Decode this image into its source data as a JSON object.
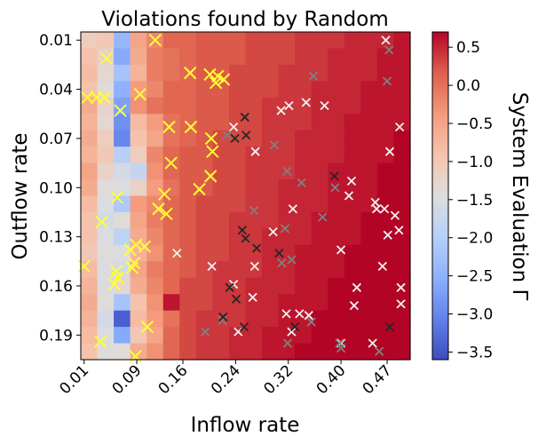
{
  "chart_data": {
    "type": "heatmap",
    "title": "Violations found by Random",
    "xlabel": "Inflow rate",
    "ylabel": "Outflow rate",
    "colorbar_label": "System Evaluation Γ",
    "x_ticklabels": [
      "0.01",
      "0.09",
      "0.16",
      "0.24",
      "0.32",
      "0.40",
      "0.47"
    ],
    "y_ticklabels": [
      "0.01",
      "0.04",
      "0.07",
      "0.10",
      "0.13",
      "0.16",
      "0.19"
    ],
    "colorbar_ticklabels": [
      "0.5",
      "0.0",
      "−0.5",
      "−1.0",
      "−1.5",
      "−2.0",
      "−2.5",
      "−3.0",
      "−3.5"
    ],
    "colorbar_ticks": [
      0.5,
      0.0,
      -0.5,
      -1.0,
      -1.5,
      -2.0,
      -2.5,
      -3.0,
      -3.5
    ],
    "colorbar_range": [
      -3.6,
      0.7
    ],
    "colormap": "coolwarm",
    "x_range": [
      0.0,
      0.5
    ],
    "y_range": [
      0.0,
      0.2
    ],
    "grid_columns": 20,
    "grid_rows": 20,
    "cell_values": [
      [
        -1.1,
        -1.0,
        -2.4,
        -0.5,
        -0.2,
        0.1,
        0.1,
        0.2,
        0.2,
        0.2,
        0.3,
        0.3,
        0.3,
        0.4,
        0.4,
        0.4,
        0.5,
        0.5,
        0.5,
        0.6
      ],
      [
        -0.9,
        -1.2,
        -2.6,
        -0.6,
        -0.1,
        0.0,
        0.1,
        0.2,
        0.2,
        0.2,
        0.3,
        0.3,
        0.3,
        0.4,
        0.4,
        0.5,
        0.5,
        0.5,
        0.6,
        0.6
      ],
      [
        -0.8,
        -1.3,
        -2.2,
        -0.7,
        -0.1,
        0.0,
        0.1,
        0.2,
        0.2,
        0.3,
        0.3,
        0.3,
        0.4,
        0.4,
        0.4,
        0.5,
        0.5,
        0.5,
        0.6,
        0.6
      ],
      [
        -0.9,
        -1.4,
        -2.5,
        -0.4,
        -0.2,
        0.1,
        0.1,
        0.2,
        0.2,
        0.3,
        0.3,
        0.3,
        0.4,
        0.4,
        0.5,
        0.5,
        0.5,
        0.6,
        0.6,
        0.6
      ],
      [
        -0.6,
        -1.2,
        -2.7,
        -0.3,
        0.0,
        0.1,
        0.1,
        0.2,
        0.2,
        0.3,
        0.3,
        0.4,
        0.4,
        0.4,
        0.5,
        0.5,
        0.5,
        0.6,
        0.6,
        0.6
      ],
      [
        -0.7,
        -1.3,
        -2.9,
        -0.8,
        -0.4,
        0.0,
        0.1,
        0.2,
        0.2,
        0.3,
        0.3,
        0.4,
        0.4,
        0.4,
        0.5,
        0.5,
        0.6,
        0.6,
        0.6,
        0.6
      ],
      [
        -0.6,
        -1.1,
        -3.0,
        -0.9,
        -0.5,
        0.0,
        0.1,
        0.2,
        0.3,
        0.3,
        0.3,
        0.4,
        0.4,
        0.5,
        0.5,
        0.5,
        0.6,
        0.6,
        0.6,
        0.7
      ],
      [
        -0.7,
        -1.0,
        -2.0,
        -1.1,
        -0.2,
        0.1,
        0.2,
        0.2,
        0.3,
        0.3,
        0.4,
        0.4,
        0.4,
        0.5,
        0.5,
        0.5,
        0.6,
        0.6,
        0.6,
        0.7
      ],
      [
        -0.5,
        -1.2,
        -1.6,
        -1.8,
        -0.3,
        0.1,
        0.2,
        0.2,
        0.3,
        0.3,
        0.4,
        0.4,
        0.4,
        0.5,
        0.5,
        0.6,
        0.6,
        0.6,
        0.7,
        0.7
      ],
      [
        -0.6,
        -1.4,
        -1.5,
        -1.2,
        -0.4,
        0.0,
        0.2,
        0.2,
        0.3,
        0.3,
        0.4,
        0.4,
        0.5,
        0.5,
        0.5,
        0.6,
        0.6,
        0.6,
        0.7,
        0.7
      ],
      [
        -0.8,
        -1.5,
        -2.1,
        -0.4,
        -0.2,
        0.1,
        0.2,
        0.3,
        0.3,
        0.3,
        0.4,
        0.4,
        0.5,
        0.5,
        0.5,
        0.6,
        0.6,
        0.6,
        0.7,
        0.7
      ],
      [
        -0.9,
        -1.6,
        -1.4,
        -0.5,
        -0.1,
        0.1,
        0.2,
        0.3,
        0.3,
        0.4,
        0.4,
        0.4,
        0.5,
        0.5,
        0.6,
        0.6,
        0.6,
        0.7,
        0.7,
        0.7
      ],
      [
        -0.9,
        -1.5,
        -1.9,
        -0.6,
        -0.2,
        0.1,
        0.2,
        0.3,
        0.3,
        0.4,
        0.4,
        0.5,
        0.5,
        0.5,
        0.6,
        0.6,
        0.6,
        0.7,
        0.7,
        0.7
      ],
      [
        -1.0,
        -1.4,
        -1.5,
        -0.7,
        -0.3,
        0.1,
        0.2,
        0.3,
        0.3,
        0.4,
        0.4,
        0.5,
        0.5,
        0.6,
        0.6,
        0.6,
        0.7,
        0.7,
        0.7,
        0.7
      ],
      [
        -0.8,
        -1.5,
        -1.6,
        -0.5,
        -0.1,
        0.1,
        0.2,
        0.3,
        0.4,
        0.4,
        0.4,
        0.5,
        0.5,
        0.6,
        0.6,
        0.6,
        0.7,
        0.7,
        0.7,
        0.7
      ],
      [
        -0.7,
        -1.5,
        -1.3,
        -0.6,
        -0.2,
        0.1,
        0.3,
        0.3,
        0.4,
        0.4,
        0.5,
        0.5,
        0.5,
        0.6,
        0.6,
        0.7,
        0.7,
        0.7,
        0.7,
        0.7
      ],
      [
        -0.6,
        -1.4,
        -2.2,
        -0.9,
        -0.3,
        0.6,
        0.3,
        0.3,
        0.4,
        0.4,
        0.5,
        0.5,
        0.6,
        0.6,
        0.6,
        0.7,
        0.7,
        0.7,
        0.7,
        0.7
      ],
      [
        -0.7,
        -1.6,
        -3.4,
        -0.8,
        -0.4,
        0.0,
        0.3,
        0.4,
        0.4,
        0.4,
        0.5,
        0.5,
        0.6,
        0.6,
        0.7,
        0.7,
        0.7,
        0.7,
        0.7,
        0.7
      ],
      [
        -0.8,
        -1.5,
        -2.6,
        -1.0,
        -0.5,
        0.1,
        0.3,
        0.4,
        0.4,
        0.5,
        0.5,
        0.6,
        0.6,
        0.6,
        0.7,
        0.7,
        0.7,
        0.7,
        0.7,
        0.7
      ],
      [
        -0.9,
        -1.4,
        -1.4,
        -0.6,
        -0.3,
        0.1,
        0.3,
        0.4,
        0.4,
        0.5,
        0.5,
        0.6,
        0.6,
        0.7,
        0.7,
        0.7,
        0.7,
        0.7,
        0.7,
        0.7
      ]
    ],
    "violation_markers": [
      {
        "x": 0.113,
        "y": 0.005,
        "color": "#ffff33",
        "label": ""
      },
      {
        "x": 0.039,
        "y": 0.016,
        "color": "#ffff33",
        "label": ""
      },
      {
        "x": 0.166,
        "y": 0.025,
        "color": "#ffff33",
        "label": ""
      },
      {
        "x": 0.196,
        "y": 0.026,
        "color": "#ffff33",
        "label": ""
      },
      {
        "x": 0.205,
        "y": 0.031,
        "color": "#ffff33",
        "label": ""
      },
      {
        "x": 0.208,
        "y": 0.027,
        "color": "#ffff33",
        "label": ""
      },
      {
        "x": 0.217,
        "y": 0.029,
        "color": "#ffff33",
        "label": ""
      },
      {
        "x": 0.01,
        "y": 0.04,
        "color": "#ffff33",
        "label": ""
      },
      {
        "x": 0.024,
        "y": 0.04,
        "color": "#ffff33",
        "label": ""
      },
      {
        "x": 0.036,
        "y": 0.04,
        "color": "#ffff33",
        "label": ""
      },
      {
        "x": 0.09,
        "y": 0.038,
        "color": "#ffff33",
        "label": ""
      },
      {
        "x": 0.06,
        "y": 0.048,
        "color": "#ffff33",
        "label": ""
      },
      {
        "x": 0.167,
        "y": 0.058,
        "color": "#ffff33",
        "label": ""
      },
      {
        "x": 0.134,
        "y": 0.058,
        "color": "#ffff33",
        "label": ""
      },
      {
        "x": 0.198,
        "y": 0.065,
        "color": "#ffff33",
        "label": ""
      },
      {
        "x": 0.2,
        "y": 0.073,
        "color": "#ffff33",
        "label": ""
      },
      {
        "x": 0.137,
        "y": 0.08,
        "color": "#ffff33",
        "label": ""
      },
      {
        "x": 0.197,
        "y": 0.088,
        "color": "#ffff33",
        "label": ""
      },
      {
        "x": 0.18,
        "y": 0.096,
        "color": "#ffff33",
        "label": ""
      },
      {
        "x": 0.127,
        "y": 0.099,
        "color": "#ffff33",
        "label": ""
      },
      {
        "x": 0.055,
        "y": 0.101,
        "color": "#ffff33",
        "label": ""
      },
      {
        "x": 0.118,
        "y": 0.108,
        "color": "#ffff33",
        "label": ""
      },
      {
        "x": 0.13,
        "y": 0.111,
        "color": "#ffff33",
        "label": ""
      },
      {
        "x": 0.032,
        "y": 0.116,
        "color": "#ffff33",
        "label": ""
      },
      {
        "x": 0.084,
        "y": 0.13,
        "color": "#ffff33",
        "label": ""
      },
      {
        "x": 0.075,
        "y": 0.133,
        "color": "#ffff33",
        "label": ""
      },
      {
        "x": 0.097,
        "y": 0.131,
        "color": "#ffff33",
        "label": ""
      },
      {
        "x": 0.081,
        "y": 0.141,
        "color": "#ffff33",
        "label": ""
      },
      {
        "x": 0.005,
        "y": 0.143,
        "color": "#ffff33",
        "label": ""
      },
      {
        "x": 0.078,
        "y": 0.144,
        "color": "#ffff33",
        "label": ""
      },
      {
        "x": 0.054,
        "y": 0.146,
        "color": "#ffff33",
        "label": ""
      },
      {
        "x": 0.056,
        "y": 0.15,
        "color": "#ffff33",
        "label": ""
      },
      {
        "x": 0.051,
        "y": 0.154,
        "color": "#ffff33",
        "label": ""
      },
      {
        "x": 0.101,
        "y": 0.18,
        "color": "#ffff33",
        "label": ""
      },
      {
        "x": 0.03,
        "y": 0.189,
        "color": "#ffff33",
        "label": ""
      },
      {
        "x": 0.083,
        "y": 0.198,
        "color": "#ffff33",
        "label": ""
      },
      {
        "x": 0.463,
        "y": 0.005,
        "color": "#f2f2f2",
        "label": ""
      },
      {
        "x": 0.316,
        "y": 0.045,
        "color": "#f2f2f2",
        "label": ""
      },
      {
        "x": 0.342,
        "y": 0.043,
        "color": "#f2f2f2",
        "label": ""
      },
      {
        "x": 0.37,
        "y": 0.045,
        "color": "#f2f2f2",
        "label": ""
      },
      {
        "x": 0.304,
        "y": 0.048,
        "color": "#f2f2f2",
        "label": ""
      },
      {
        "x": 0.232,
        "y": 0.058,
        "color": "#f2f2f2",
        "label": ""
      },
      {
        "x": 0.484,
        "y": 0.058,
        "color": "#f2f2f2",
        "label": ""
      },
      {
        "x": 0.265,
        "y": 0.073,
        "color": "#f2f2f2",
        "label": ""
      },
      {
        "x": 0.469,
        "y": 0.073,
        "color": "#f2f2f2",
        "label": ""
      },
      {
        "x": 0.411,
        "y": 0.091,
        "color": "#f2f2f2",
        "label": ""
      },
      {
        "x": 0.407,
        "y": 0.1,
        "color": "#f2f2f2",
        "label": ""
      },
      {
        "x": 0.447,
        "y": 0.104,
        "color": "#f2f2f2",
        "label": ""
      },
      {
        "x": 0.322,
        "y": 0.108,
        "color": "#f2f2f2",
        "label": ""
      },
      {
        "x": 0.449,
        "y": 0.108,
        "color": "#f2f2f2",
        "label": ""
      },
      {
        "x": 0.461,
        "y": 0.108,
        "color": "#f2f2f2",
        "label": ""
      },
      {
        "x": 0.477,
        "y": 0.112,
        "color": "#f2f2f2",
        "label": ""
      },
      {
        "x": 0.483,
        "y": 0.121,
        "color": "#f2f2f2",
        "label": ""
      },
      {
        "x": 0.292,
        "y": 0.122,
        "color": "#f2f2f2",
        "label": ""
      },
      {
        "x": 0.466,
        "y": 0.124,
        "color": "#f2f2f2",
        "label": ""
      },
      {
        "x": 0.395,
        "y": 0.133,
        "color": "#f2f2f2",
        "label": ""
      },
      {
        "x": 0.146,
        "y": 0.135,
        "color": "#f2f2f2",
        "label": ""
      },
      {
        "x": 0.199,
        "y": 0.143,
        "color": "#f2f2f2",
        "label": ""
      },
      {
        "x": 0.264,
        "y": 0.143,
        "color": "#f2f2f2",
        "label": ""
      },
      {
        "x": 0.458,
        "y": 0.143,
        "color": "#f2f2f2",
        "label": ""
      },
      {
        "x": 0.232,
        "y": 0.154,
        "color": "#f2f2f2",
        "label": ""
      },
      {
        "x": 0.419,
        "y": 0.156,
        "color": "#f2f2f2",
        "label": ""
      },
      {
        "x": 0.486,
        "y": 0.156,
        "color": "#f2f2f2",
        "label": ""
      },
      {
        "x": 0.261,
        "y": 0.162,
        "color": "#f2f2f2",
        "label": ""
      },
      {
        "x": 0.312,
        "y": 0.172,
        "color": "#f2f2f2",
        "label": ""
      },
      {
        "x": 0.332,
        "y": 0.172,
        "color": "#f2f2f2",
        "label": ""
      },
      {
        "x": 0.346,
        "y": 0.173,
        "color": "#f2f2f2",
        "label": ""
      },
      {
        "x": 0.415,
        "y": 0.167,
        "color": "#f2f2f2",
        "label": ""
      },
      {
        "x": 0.486,
        "y": 0.166,
        "color": "#f2f2f2",
        "label": ""
      },
      {
        "x": 0.239,
        "y": 0.183,
        "color": "#f2f2f2",
        "label": ""
      },
      {
        "x": 0.32,
        "y": 0.183,
        "color": "#f2f2f2",
        "label": ""
      },
      {
        "x": 0.395,
        "y": 0.19,
        "color": "#f2f2f2",
        "label": ""
      },
      {
        "x": 0.443,
        "y": 0.19,
        "color": "#f2f2f2",
        "label": ""
      },
      {
        "x": 0.353,
        "y": 0.027,
        "color": "#808080",
        "label": ""
      },
      {
        "x": 0.468,
        "y": 0.011,
        "color": "#808080",
        "label": ""
      },
      {
        "x": 0.465,
        "y": 0.03,
        "color": "#808080",
        "label": ""
      },
      {
        "x": 0.222,
        "y": 0.063,
        "color": "#808080",
        "label": ""
      },
      {
        "x": 0.294,
        "y": 0.069,
        "color": "#808080",
        "label": ""
      },
      {
        "x": 0.313,
        "y": 0.085,
        "color": "#808080",
        "label": ""
      },
      {
        "x": 0.335,
        "y": 0.092,
        "color": "#808080",
        "label": ""
      },
      {
        "x": 0.386,
        "y": 0.095,
        "color": "#808080",
        "label": ""
      },
      {
        "x": 0.263,
        "y": 0.109,
        "color": "#808080",
        "label": ""
      },
      {
        "x": 0.367,
        "y": 0.113,
        "color": "#808080",
        "label": ""
      },
      {
        "x": 0.31,
        "y": 0.12,
        "color": "#808080",
        "label": ""
      },
      {
        "x": 0.305,
        "y": 0.141,
        "color": "#808080",
        "label": ""
      },
      {
        "x": 0.32,
        "y": 0.139,
        "color": "#808080",
        "label": ""
      },
      {
        "x": 0.215,
        "y": 0.176,
        "color": "#808080",
        "label": ""
      },
      {
        "x": 0.189,
        "y": 0.183,
        "color": "#808080",
        "label": ""
      },
      {
        "x": 0.35,
        "y": 0.177,
        "color": "#808080",
        "label": ""
      },
      {
        "x": 0.314,
        "y": 0.19,
        "color": "#808080",
        "label": ""
      },
      {
        "x": 0.393,
        "y": 0.19,
        "color": "#808080",
        "label": ""
      },
      {
        "x": 0.395,
        "y": 0.193,
        "color": "#808080",
        "label": ""
      },
      {
        "x": 0.453,
        "y": 0.195,
        "color": "#808080",
        "label": ""
      },
      {
        "x": 0.249,
        "y": 0.052,
        "color": "#262626",
        "label": ""
      },
      {
        "x": 0.234,
        "y": 0.065,
        "color": "#262626",
        "label": ""
      },
      {
        "x": 0.251,
        "y": 0.063,
        "color": "#262626",
        "label": ""
      },
      {
        "x": 0.385,
        "y": 0.088,
        "color": "#262626",
        "label": ""
      },
      {
        "x": 0.245,
        "y": 0.121,
        "color": "#262626",
        "label": ""
      },
      {
        "x": 0.25,
        "y": 0.126,
        "color": "#262626",
        "label": ""
      },
      {
        "x": 0.267,
        "y": 0.132,
        "color": "#262626",
        "label": ""
      },
      {
        "x": 0.301,
        "y": 0.135,
        "color": "#262626",
        "label": ""
      },
      {
        "x": 0.226,
        "y": 0.156,
        "color": "#262626",
        "label": ""
      },
      {
        "x": 0.236,
        "y": 0.163,
        "color": "#262626",
        "label": ""
      },
      {
        "x": 0.216,
        "y": 0.174,
        "color": "#262626",
        "label": ""
      },
      {
        "x": 0.248,
        "y": 0.18,
        "color": "#262626",
        "label": ""
      },
      {
        "x": 0.325,
        "y": 0.18,
        "color": "#262626",
        "label": ""
      },
      {
        "x": 0.469,
        "y": 0.18,
        "color": "#262626",
        "label": ""
      }
    ]
  }
}
